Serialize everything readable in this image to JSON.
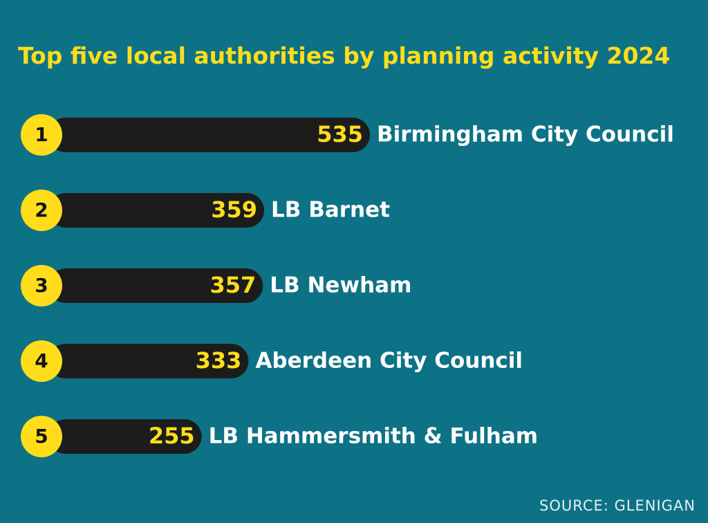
{
  "title": "Top five local authorities by planning activity 2024",
  "source": "SOURCE: GLENIGAN",
  "colors": {
    "background": "#0d7286",
    "accent": "#ffdd1a",
    "bar": "#1c1c1c",
    "label": "#ffffff"
  },
  "chart_data": {
    "type": "bar",
    "orientation": "horizontal",
    "title": "Top five local authorities by planning activity 2024",
    "ranks": [
      "1",
      "2",
      "3",
      "4",
      "5"
    ],
    "categories": [
      "Birmingham City Council",
      "LB Barnet",
      "LB Newham",
      "Aberdeen City Council",
      "LB Hammersmith & Fulham"
    ],
    "values": [
      535,
      359,
      357,
      333,
      255
    ],
    "xlabel": "",
    "ylabel": "",
    "grid": false,
    "source": "SOURCE: GLENIGAN"
  }
}
